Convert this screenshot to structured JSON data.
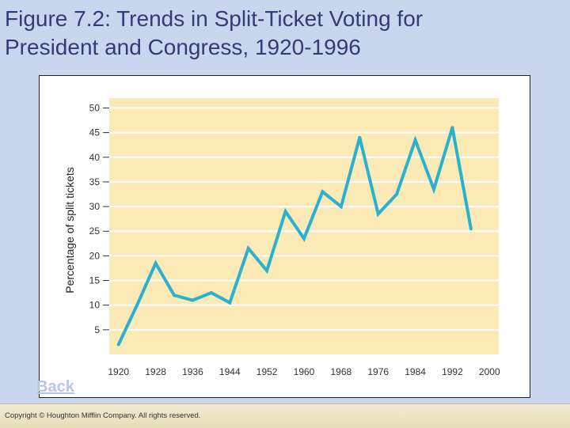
{
  "slide": {
    "title_line1": "Figure 7.2: Trends in Split-Ticket Voting for",
    "title_line2": "President and Congress, 1920-1996",
    "back_label": "Back",
    "copyright": "Copyright © Houghton Mifflin Company. All rights reserved."
  },
  "colors": {
    "background": "#c9d6ee",
    "title": "#2f3d78",
    "plot_band": "#fbe9b6",
    "line": "#2bb1d0"
  },
  "chart_data": {
    "type": "line",
    "title": "",
    "xlabel": "",
    "ylabel": "Percentage of split tickets",
    "xlim": [
      1918,
      2002
    ],
    "ylim": [
      0,
      52
    ],
    "xticks": [
      1920,
      1928,
      1936,
      1944,
      1952,
      1960,
      1968,
      1976,
      1984,
      1992,
      2000
    ],
    "yticks": [
      5,
      10,
      15,
      20,
      25,
      30,
      35,
      40,
      45,
      50
    ],
    "grid": true,
    "series": [
      {
        "name": "Split-ticket voting",
        "x": [
          1920,
          1924,
          1928,
          1932,
          1936,
          1940,
          1944,
          1948,
          1952,
          1956,
          1960,
          1964,
          1968,
          1972,
          1976,
          1980,
          1984,
          1988,
          1992,
          1996
        ],
        "y": [
          2,
          10,
          18.5,
          12,
          11,
          12.5,
          10.5,
          21.5,
          17,
          29,
          23.5,
          33,
          30,
          44,
          28.5,
          32.5,
          43.5,
          33.5,
          46,
          25.5
        ]
      }
    ]
  }
}
